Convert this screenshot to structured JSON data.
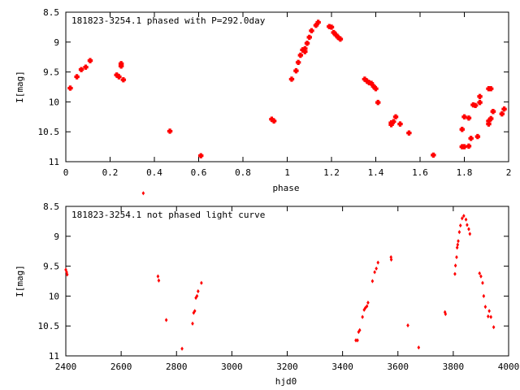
{
  "chart_data": [
    {
      "type": "scatter",
      "title": "181823-3254.1 phased with P=292.0day",
      "xlabel": "phase",
      "ylabel": "I[mag]",
      "xlim": [
        0,
        2
      ],
      "ylim": [
        11,
        8.5
      ],
      "y_inverted": true,
      "xticks": [
        0,
        0.2,
        0.4,
        0.6,
        0.8,
        1,
        1.2,
        1.4,
        1.6,
        1.8,
        2
      ],
      "xtick_labels": [
        "0",
        "0.2",
        "0.4",
        "0.6",
        "0.8",
        "1",
        "1.2",
        "1.4",
        "1.6",
        "1.8",
        "2"
      ],
      "yticks": [
        8.5,
        9,
        9.5,
        10,
        10.5,
        11
      ],
      "ytick_labels": [
        "8.5",
        "9",
        "9.5",
        "10",
        "10.5",
        "11"
      ],
      "grid": false,
      "marker_color": "#ff0000",
      "series": [
        {
          "x": [
            0.02,
            0.05,
            0.07,
            0.09,
            0.11,
            0.23,
            0.24,
            0.25,
            0.25,
            0.26,
            0.47,
            0.61,
            0.93,
            0.94,
            1.02,
            1.04,
            1.05,
            1.06,
            1.07,
            1.08,
            1.08,
            1.09,
            1.1,
            1.11,
            1.13,
            1.14,
            1.19,
            1.2,
            1.21,
            1.22,
            1.23,
            1.24,
            1.35,
            1.36,
            1.37,
            1.38,
            1.39,
            1.4,
            1.41,
            1.47,
            1.47,
            1.48,
            1.49,
            1.51,
            1.55,
            1.66,
            1.79,
            1.79,
            1.8,
            1.8,
            1.82,
            1.82,
            1.83,
            1.84,
            1.85,
            1.86,
            1.87,
            1.87,
            1.91,
            1.91,
            1.91,
            1.92,
            1.92,
            1.93,
            1.93,
            1.97,
            1.98
          ],
          "y": [
            9.77,
            9.58,
            9.46,
            9.42,
            9.31,
            9.55,
            9.58,
            9.36,
            9.4,
            9.63,
            10.49,
            10.9,
            10.29,
            10.32,
            9.62,
            9.48,
            9.34,
            9.22,
            9.13,
            9.16,
            9.11,
            9.02,
            8.92,
            8.81,
            8.72,
            8.67,
            8.74,
            8.75,
            8.84,
            8.88,
            8.92,
            8.95,
            9.62,
            9.65,
            9.68,
            9.69,
            9.74,
            9.78,
            10.01,
            10.35,
            10.38,
            10.33,
            10.25,
            10.37,
            10.52,
            10.89,
            10.46,
            10.75,
            10.25,
            10.75,
            10.74,
            10.27,
            10.61,
            10.05,
            10.06,
            10.58,
            9.91,
            10.01,
            9.78,
            10.32,
            10.37,
            9.78,
            10.28,
            10.16,
            10.16,
            10.2,
            10.12
          ]
        }
      ]
    },
    {
      "type": "scatter",
      "title": "181823-3254.1 not phased light curve",
      "xlabel": "hjd0",
      "ylabel": "I[mag]",
      "xlim": [
        2400,
        4000
      ],
      "ylim": [
        11,
        8.5
      ],
      "y_inverted": true,
      "xticks": [
        2400,
        2600,
        2800,
        3000,
        3200,
        3400,
        3600,
        3800,
        4000
      ],
      "xtick_labels": [
        "2400",
        "2600",
        "2800",
        "3000",
        "3200",
        "3400",
        "3600",
        "3800",
        "4000"
      ],
      "yticks": [
        8.5,
        9,
        9.5,
        10,
        10.5,
        11
      ],
      "ytick_labels": [
        "8.5",
        "9",
        "9.5",
        "10",
        "10.5",
        "11"
      ],
      "grid": false,
      "marker_color": "#ff0000",
      "series": [
        {
          "x": [
            2400,
            2403,
            2405,
            2680,
            2733,
            2736,
            2763,
            2820,
            2858,
            2862,
            2866,
            2870,
            2874,
            2878,
            2890,
            3448,
            3454,
            3458,
            3462,
            3472,
            3478,
            3482,
            3488,
            3492,
            3508,
            3516,
            3522,
            3528,
            3575,
            3576,
            3636,
            3675,
            3770,
            3772,
            3806,
            3808,
            3812,
            3814,
            3816,
            3818,
            3822,
            3826,
            3832,
            3838,
            3846,
            3850,
            3856,
            3860,
            3895,
            3900,
            3906,
            3910,
            3916,
            3926,
            3930,
            3936,
            3946
          ],
          "y": [
            9.56,
            9.6,
            9.64,
            8.28,
            9.67,
            9.74,
            10.4,
            10.88,
            10.46,
            10.28,
            10.25,
            10.03,
            10.0,
            9.92,
            9.78,
            10.74,
            10.74,
            10.6,
            10.57,
            10.35,
            10.23,
            10.2,
            10.17,
            10.11,
            9.75,
            9.6,
            9.54,
            9.44,
            9.35,
            9.39,
            10.49,
            10.86,
            10.27,
            10.3,
            9.63,
            9.49,
            9.35,
            9.19,
            9.14,
            9.08,
            8.93,
            8.82,
            8.7,
            8.66,
            8.72,
            8.81,
            8.88,
            8.96,
            9.62,
            9.67,
            9.78,
            10.0,
            10.18,
            10.34,
            10.25,
            10.35,
            10.52
          ]
        }
      ]
    }
  ]
}
